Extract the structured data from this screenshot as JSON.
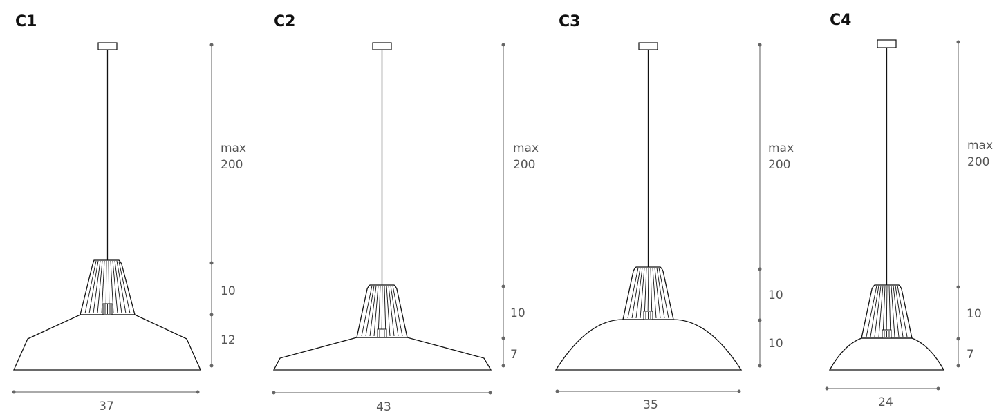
{
  "lamps": [
    {
      "id": "C1",
      "title": "C1",
      "max_label": "max",
      "height_cable": "200",
      "height_cone": "10",
      "height_shade": "12",
      "width": "37",
      "shade_shape": "trapezoid-stepped"
    },
    {
      "id": "C2",
      "title": "C2",
      "max_label": "max",
      "height_cable": "200",
      "height_cone": "10",
      "height_shade": "7",
      "width": "43",
      "shade_shape": "flat-stepped"
    },
    {
      "id": "C3",
      "title": "C3",
      "max_label": "max",
      "height_cable": "200",
      "height_cone": "10",
      "height_shade": "10",
      "width": "35",
      "shade_shape": "dome"
    },
    {
      "id": "C4",
      "title": "C4",
      "max_label": "max",
      "height_cable": "200",
      "height_cone": "10",
      "height_shade": "7",
      "width": "24",
      "shade_shape": "small-dome"
    }
  ]
}
